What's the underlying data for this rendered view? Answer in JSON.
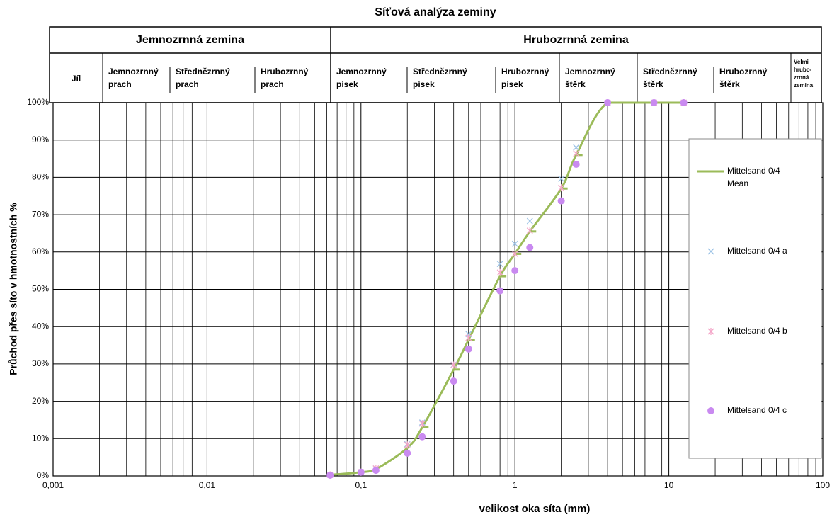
{
  "chart_data": {
    "type": "line",
    "title": "Síťová analýza zeminy",
    "header": {
      "groups": [
        "Jemnozrnná zemina",
        "Hrubozrnná zemina"
      ],
      "columns": [
        [
          "Jíl"
        ],
        [
          "Jemnozrnný",
          "prach"
        ],
        [
          "Střednězrnný",
          "prach"
        ],
        [
          "Hrubozrnný",
          "prach"
        ],
        [
          "Jemnozrnný",
          "písek"
        ],
        [
          "Střednězrnný",
          "písek"
        ],
        [
          "Hrubozrnný",
          "písek"
        ],
        [
          "Jemnozrnný",
          "štěrk"
        ],
        [
          "Střednězrnný",
          "štěrk"
        ],
        [
          "Hrubozrnný",
          "štěrk"
        ],
        [
          "Velmi",
          "hrubo-",
          "zrnná",
          "zemina"
        ]
      ]
    },
    "x_label": "velikost oka síta (mm)",
    "y_label": "Průchod přes síto v hmotnostních %",
    "log_x": true,
    "grid": true,
    "legend": "right",
    "xlim": [
      0.001,
      100
    ],
    "xticks": [
      {
        "value": 0.001,
        "label": "0,001"
      },
      {
        "value": 0.01,
        "label": "0,01"
      },
      {
        "value": 0.1,
        "label": "0,1"
      },
      1,
      10,
      100
    ],
    "ylim": [
      0,
      100
    ],
    "yticks": [
      {
        "value": 0,
        "label": "0%"
      },
      {
        "value": 10,
        "label": "10%"
      },
      {
        "value": 20,
        "label": "20%"
      },
      {
        "value": 30,
        "label": "30%"
      },
      {
        "value": 40,
        "label": "40%"
      },
      {
        "value": 50,
        "label": "50%"
      },
      {
        "value": 60,
        "label": "60%"
      },
      {
        "value": 70,
        "label": "70%"
      },
      {
        "value": 80,
        "label": "80%"
      },
      {
        "value": 90,
        "label": "90%"
      },
      {
        "value": 100,
        "label": "100%"
      }
    ],
    "x": [
      0.063,
      0.1,
      0.125,
      0.2,
      0.25,
      0.4,
      0.5,
      0.8,
      1,
      1.25,
      2,
      2.5,
      4,
      8,
      12.5
    ],
    "series": [
      {
        "name": "Mittelsand 0/4 Mean",
        "color": "#9bbb59",
        "marker": "line",
        "values": [
          0.3,
          1,
          1.8,
          7.5,
          13,
          28.5,
          36.5,
          53.5,
          59.5,
          65.5,
          77,
          86,
          100,
          100,
          100
        ]
      },
      {
        "name": "Mittelsand 0/4 a",
        "color": "#9dc3e6",
        "marker": "x",
        "values": [
          0.3,
          1,
          2,
          8.5,
          14.3,
          29.8,
          38,
          56.8,
          62.2,
          68.3,
          79.6,
          88,
          100,
          100,
          100
        ]
      },
      {
        "name": "Mittelsand 0/4 b",
        "color": "#f4a6c8",
        "marker": "star",
        "values": [
          0.3,
          1,
          2,
          8.3,
          14,
          29.7,
          37,
          54.5,
          59.5,
          65.7,
          77.2,
          86.4,
          100,
          100,
          100
        ]
      },
      {
        "name": "Mittelsand 0/4 c",
        "color": "#c98af0",
        "marker": "circle",
        "values": [
          0.2,
          1,
          1.5,
          6.1,
          10.5,
          25.4,
          34,
          49.6,
          55,
          61.2,
          73.7,
          83.5,
          100,
          100,
          100
        ]
      }
    ]
  }
}
